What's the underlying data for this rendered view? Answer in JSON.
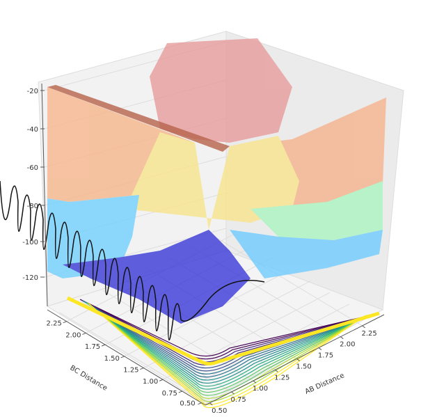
{
  "chart_data": {
    "type": "surface",
    "title": "",
    "xlabel": "AB Distance",
    "ylabel": "BC Distance",
    "zlabel": "",
    "x_ticks": [
      "0.50",
      "0.75",
      "1.00",
      "1.25",
      "1.50",
      "1.75",
      "2.00",
      "2.25"
    ],
    "y_ticks": [
      "0.50",
      "0.75",
      "1.00",
      "1.25",
      "1.50",
      "1.75",
      "2.00",
      "2.25"
    ],
    "z_ticks": [
      "-20",
      "-40",
      "-60",
      "-80",
      "-100",
      "-120"
    ],
    "xlim": [
      0.5,
      2.4
    ],
    "ylim": [
      0.5,
      2.4
    ],
    "zlim": [
      -135,
      -15
    ],
    "grid": true,
    "surface_colormap": "jet (translucent)",
    "contour_colormap": "viridis",
    "trajectory_color": "#000000"
  }
}
